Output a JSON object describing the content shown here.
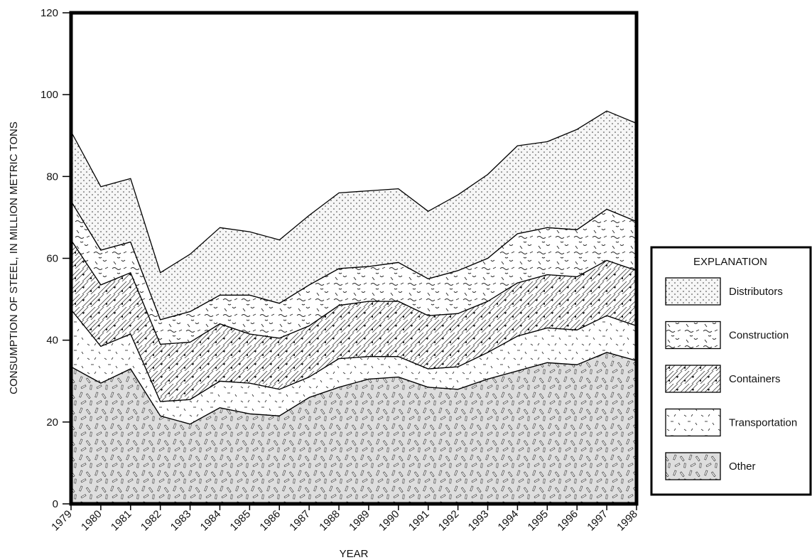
{
  "chart_data": {
    "type": "area",
    "stacked": true,
    "xlabel": "YEAR",
    "ylabel": "CONSUMPTION OF STEEL, IN MILLION METRIC TONS",
    "ylim": [
      0,
      120
    ],
    "yticks": [
      0,
      20,
      40,
      60,
      80,
      100,
      120
    ],
    "grid": false,
    "legend_position": "right",
    "legend_title": "EXPLANATION",
    "x": [
      "1979",
      "1980",
      "1981",
      "1982",
      "1983",
      "1984",
      "1985",
      "1986",
      "1987",
      "1988",
      "1989",
      "1990",
      "1991",
      "1992",
      "1993",
      "1994",
      "1995",
      "1996",
      "1997",
      "1998"
    ],
    "series": [
      {
        "name": "Other",
        "pattern": "dashes",
        "values": [
          33.5,
          29.5,
          33,
          21.5,
          19.5,
          23.5,
          22,
          21.5,
          26,
          28.5,
          30.5,
          31,
          28.5,
          28,
          30.5,
          32.5,
          34.5,
          34,
          37,
          35
        ]
      },
      {
        "name": "Transportation",
        "pattern": "sparse-dashes",
        "values": [
          14,
          9,
          8.5,
          3.5,
          6,
          6.5,
          7.5,
          6.5,
          5,
          7,
          5.5,
          5,
          4.5,
          5.5,
          6.5,
          8.5,
          8.5,
          8.5,
          9,
          8.5
        ]
      },
      {
        "name": "Containers",
        "pattern": "hatch-dots",
        "values": [
          17,
          15,
          15,
          14,
          14,
          14,
          12,
          12.5,
          12.5,
          13,
          13.5,
          13.5,
          13,
          13,
          12.5,
          13,
          13,
          13,
          13.5,
          13.5
        ]
      },
      {
        "name": "Construction",
        "pattern": "squiggles",
        "values": [
          9.5,
          8.5,
          7.5,
          6,
          7.5,
          7,
          9.5,
          8.5,
          10,
          9,
          8.5,
          9.5,
          9,
          10.5,
          10.5,
          12,
          11.5,
          11.5,
          12.5,
          12
        ]
      },
      {
        "name": "Distributors",
        "pattern": "dots",
        "values": [
          17,
          15.5,
          15.5,
          11.5,
          14,
          16.5,
          15.5,
          15.5,
          17,
          18.5,
          18.5,
          18,
          16.5,
          18.5,
          20.5,
          21.5,
          21,
          24.5,
          24,
          24
        ]
      }
    ]
  }
}
